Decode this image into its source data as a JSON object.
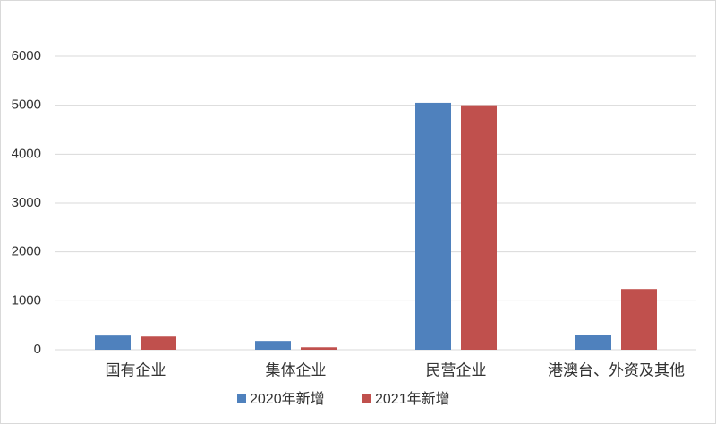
{
  "chart_data": {
    "type": "bar",
    "categories": [
      "国有企业",
      "集体企业",
      "民营企业",
      "港澳台、外资及其他"
    ],
    "series": [
      {
        "name": "2020年新增",
        "color": "#4f81bd",
        "values": [
          290,
          180,
          5050,
          310
        ]
      },
      {
        "name": "2021年新增",
        "color": "#c0504d",
        "values": [
          270,
          50,
          5000,
          1240
        ]
      }
    ],
    "ylim": [
      0,
      6000
    ],
    "yticks": [
      0,
      1000,
      2000,
      3000,
      4000,
      5000,
      6000
    ],
    "grid": true,
    "legend": "bottom"
  }
}
